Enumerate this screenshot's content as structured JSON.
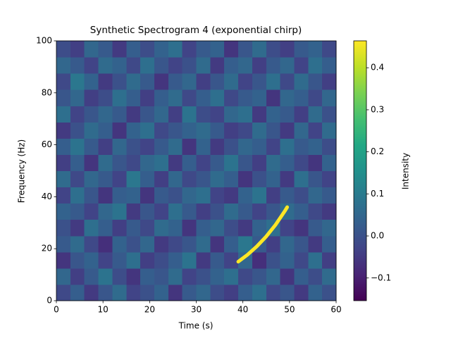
{
  "chart_data": {
    "type": "heatmap",
    "title": "Synthetic Spectrogram 4 (exponential chirp)",
    "xlabel": "Time (s)",
    "ylabel": "Frequency (Hz)",
    "colorbar_label": "Intensity",
    "xlim": [
      0,
      60
    ],
    "ylim": [
      0,
      100
    ],
    "xticks": [
      0,
      10,
      20,
      30,
      40,
      50,
      60
    ],
    "yticks": [
      0,
      20,
      40,
      60,
      80,
      100
    ],
    "clim": [
      -0.154,
      0.464
    ],
    "cticks": [
      {
        "value": -0.1,
        "label": "−0.1"
      },
      {
        "value": 0,
        "label": "0.0"
      },
      0.1,
      0.2,
      0.3,
      0.4
    ],
    "colormap": "viridis",
    "z": [
      [
        -0.02,
        0.03,
        -0.05,
        0.01,
        0.06,
        -0.03,
        0.0,
        0.04,
        -0.06,
        0.02,
        0.05,
        -0.01,
        -0.04,
        0.03,
        0.07,
        -0.02,
        0.01,
        -0.05,
        0.04,
        0.0
      ],
      [
        0.05,
        -0.04,
        0.02,
        0.08,
        -0.01,
        -0.06,
        0.03,
        0.01,
        0.06,
        -0.03,
        0.0,
        0.04,
        0.07,
        -0.02,
        0.01,
        0.05,
        -0.06,
        0.03,
        -0.01,
        0.06
      ],
      [
        -0.06,
        0.01,
        0.04,
        -0.03,
        0.02,
        0.07,
        -0.04,
        -0.01,
        0.03,
        0.08,
        -0.05,
        0.02,
        -0.03,
        0.05,
        -0.07,
        0.0,
        0.04,
        -0.02,
        0.07,
        -0.04
      ],
      [
        0.02,
        0.06,
        -0.02,
        -0.07,
        0.04,
        0.0,
        0.05,
        -0.05,
        -0.02,
        0.01,
        0.06,
        -0.06,
        0.03,
        0.09,
        0.02,
        -0.04,
        0.05,
        0.01,
        -0.05,
        0.03
      ],
      [
        0.0,
        -0.05,
        0.07,
        0.03,
        -0.04,
        0.02,
        -0.02,
        0.06,
        0.04,
        -0.06,
        0.03,
        0.05,
        -0.01,
        -0.05,
        0.04,
        0.07,
        -0.03,
        -0.06,
        0.02,
        0.05
      ],
      [
        0.04,
        0.02,
        -0.03,
        0.05,
        0.08,
        -0.05,
        0.01,
        -0.03,
        0.07,
        0.02,
        -0.04,
        0.0,
        0.06,
        0.02,
        -0.03,
        0.01,
        0.06,
        0.03,
        -0.02,
        -0.05
      ],
      [
        -0.03,
        0.07,
        0.01,
        -0.06,
        0.03,
        0.04,
        -0.06,
        0.02,
        0.0,
        0.05,
        0.07,
        -0.03,
        -0.05,
        0.04,
        0.08,
        -0.04,
        0.02,
        -0.01,
        0.05,
        0.02
      ],
      [
        0.06,
        -0.02,
        0.05,
        0.02,
        -0.03,
        0.09,
        0.03,
        -0.04,
        0.05,
        -0.02,
        0.01,
        0.06,
        0.03,
        -0.06,
        0.0,
        0.04,
        -0.05,
        0.07,
        0.01,
        -0.03
      ],
      [
        -0.04,
        0.03,
        -0.06,
        0.06,
        0.01,
        -0.02,
        0.05,
        0.07,
        -0.05,
        0.03,
        -0.03,
        0.02,
        0.08,
        0.01,
        -0.04,
        0.06,
        0.03,
        -0.02,
        -0.06,
        0.04
      ],
      [
        0.03,
        0.08,
        0.02,
        -0.04,
        0.05,
        0.0,
        -0.03,
        0.02,
        0.06,
        -0.06,
        0.04,
        -0.05,
        0.0,
        0.05,
        0.03,
        -0.03,
        0.07,
        0.02,
        0.04,
        -0.01
      ],
      [
        -0.05,
        0.0,
        0.06,
        0.03,
        -0.06,
        0.04,
        0.07,
        -0.02,
        0.01,
        0.04,
        0.06,
        0.02,
        -0.04,
        -0.02,
        0.06,
        0.01,
        -0.05,
        0.05,
        -0.03,
        0.06
      ],
      [
        0.07,
        -0.03,
        0.01,
        0.05,
        0.02,
        -0.05,
        0.01,
        0.05,
        -0.04,
        0.08,
        -0.01,
        -0.03,
        0.05,
        0.07,
        -0.05,
        0.04,
        0.02,
        -0.04,
        0.06,
        0.0
      ],
      [
        0.01,
        0.05,
        -0.04,
        -0.01,
        0.07,
        0.03,
        -0.04,
        0.03,
        0.06,
        -0.02,
        0.03,
        0.07,
        -0.02,
        0.02,
        0.04,
        -0.06,
        0.05,
        0.03,
        -0.02,
        0.05
      ],
      [
        -0.02,
        0.09,
        0.04,
        -0.05,
        0.0,
        0.06,
        0.02,
        -0.06,
        0.02,
        0.05,
        -0.04,
        0.01,
        0.06,
        -0.03,
        0.01,
        0.07,
        -0.02,
        0.06,
        0.01,
        -0.04
      ],
      [
        0.05,
        0.02,
        -0.03,
        0.06,
        0.04,
        -0.02,
        0.07,
        0.01,
        -0.03,
        0.0,
        0.06,
        -0.05,
        0.03,
        0.05,
        -0.04,
        0.02,
        0.05,
        -0.03,
        0.07,
        0.03
      ],
      [
        -0.01,
        -0.04,
        0.05,
        0.02,
        -0.05,
        0.03,
        -0.01,
        0.04,
        0.07,
        -0.03,
        0.02,
        0.04,
        -0.06,
        0.01,
        0.06,
        -0.01,
        -0.04,
        0.02,
        0.04,
        -0.02
      ]
    ],
    "chirp": {
      "x": [
        39,
        41,
        43,
        45,
        47,
        49,
        49.5
      ],
      "values": [
        15,
        17.7,
        20.9,
        24.7,
        29.2,
        34.5,
        36
      ],
      "color": "#fde725"
    }
  }
}
